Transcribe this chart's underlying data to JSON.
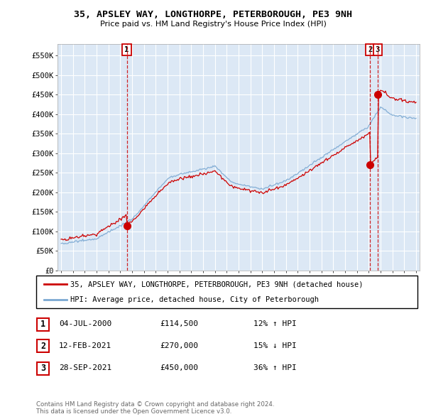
{
  "title1": "35, APSLEY WAY, LONGTHORPE, PETERBOROUGH, PE3 9NH",
  "title2": "Price paid vs. HM Land Registry's House Price Index (HPI)",
  "ylabel_ticks": [
    "£0",
    "£50K",
    "£100K",
    "£150K",
    "£200K",
    "£250K",
    "£300K",
    "£350K",
    "£400K",
    "£450K",
    "£500K",
    "£550K"
  ],
  "ytick_values": [
    0,
    50000,
    100000,
    150000,
    200000,
    250000,
    300000,
    350000,
    400000,
    450000,
    500000,
    550000
  ],
  "xlim_start": 1994.7,
  "xlim_end": 2025.3,
  "ylim_min": 0,
  "ylim_max": 580000,
  "legend_line1": "35, APSLEY WAY, LONGTHORPE, PETERBOROUGH, PE3 9NH (detached house)",
  "legend_line2": "HPI: Average price, detached house, City of Peterborough",
  "legend_color1": "#cc0000",
  "legend_color2": "#7aa8d2",
  "transactions": [
    {
      "label": "1",
      "year": 2000.55,
      "price": 114500
    },
    {
      "label": "2",
      "year": 2021.12,
      "price": 270000
    },
    {
      "label": "3",
      "year": 2021.75,
      "price": 450000
    }
  ],
  "table_rows": [
    {
      "num": "1",
      "date": "04-JUL-2000",
      "price": "£114,500",
      "hpi": "12% ↑ HPI"
    },
    {
      "num": "2",
      "date": "12-FEB-2021",
      "price": "£270,000",
      "hpi": "15% ↓ HPI"
    },
    {
      "num": "3",
      "date": "28-SEP-2021",
      "price": "£450,000",
      "hpi": "36% ↑ HPI"
    }
  ],
  "copyright_text": "Contains HM Land Registry data © Crown copyright and database right 2024.\nThis data is licensed under the Open Government Licence v3.0.",
  "bg_color": "#ffffff",
  "plot_bg_color": "#dce8f5",
  "grid_color": "#ffffff",
  "red_line_color": "#cc0000",
  "blue_line_color": "#7aa8d2"
}
